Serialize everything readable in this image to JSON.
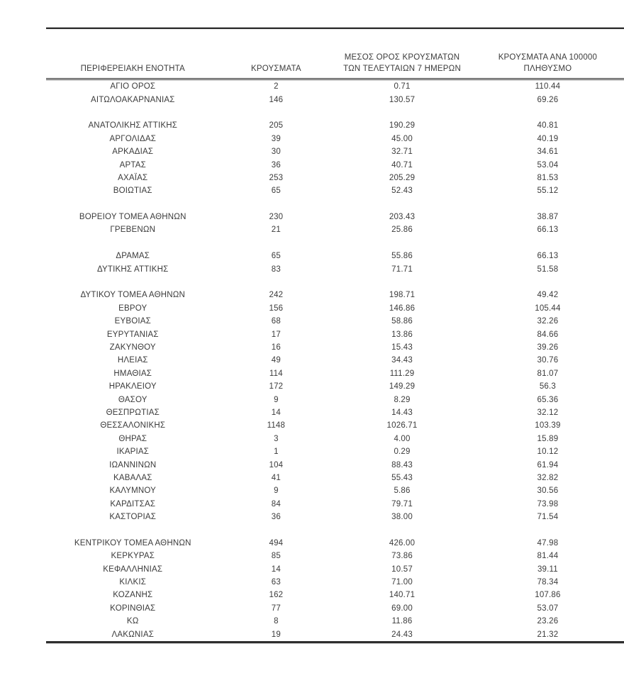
{
  "page": {
    "background": "#ffffff",
    "text_color": "#3b3b3b",
    "rule_color": "#2e2e2e"
  },
  "table": {
    "columns": [
      {
        "id": "region",
        "label_lines": [
          "ΠΕΡΙΦΕΡΕΙΑΚΗ ΕΝΟΤΗΤΑ"
        ]
      },
      {
        "id": "cases",
        "label_lines": [
          "ΚΡΟΥΣΜΑΤΑ"
        ]
      },
      {
        "id": "avg7",
        "label_lines": [
          "ΜΕΣΟΣ ΟΡΟΣ ΚΡΟΥΣΜΑΤΩΝ",
          "ΤΩΝ ΤΕΛΕΥΤΑΙΩΝ 7 ΗΜΕΡΩΝ"
        ]
      },
      {
        "id": "per100k",
        "label_lines": [
          "ΚΡΟΥΣΜΑΤΑ ΑΝΑ 100000",
          "ΠΛΗΘΥΣΜΟ"
        ]
      }
    ],
    "groups": [
      [
        [
          "ΑΓΙΟ ΟΡΟΣ",
          "2",
          "0.71",
          "110.44"
        ],
        [
          "ΑΙΤΩΛΟΑΚΑΡΝΑΝΙΑΣ",
          "146",
          "130.57",
          "69.26"
        ]
      ],
      [
        [
          "ΑΝΑΤΟΛΙΚΗΣ ΑΤΤΙΚΗΣ",
          "205",
          "190.29",
          "40.81"
        ],
        [
          "ΑΡΓΟΛΙΔΑΣ",
          "39",
          "45.00",
          "40.19"
        ],
        [
          "ΑΡΚΑΔΙΑΣ",
          "30",
          "32.71",
          "34.61"
        ],
        [
          "ΑΡΤΑΣ",
          "36",
          "40.71",
          "53.04"
        ],
        [
          "ΑΧΑΪΑΣ",
          "253",
          "205.29",
          "81.53"
        ],
        [
          "ΒΟΙΩΤΙΑΣ",
          "65",
          "52.43",
          "55.12"
        ]
      ],
      [
        [
          "ΒΟΡΕΙΟΥ ΤΟΜΕΑ ΑΘΗΝΩΝ",
          "230",
          "203.43",
          "38.87"
        ],
        [
          "ΓΡΕΒΕΝΩΝ",
          "21",
          "25.86",
          "66.13"
        ]
      ],
      [
        [
          "ΔΡΑΜΑΣ",
          "65",
          "55.86",
          "66.13"
        ],
        [
          "ΔΥΤΙΚΗΣ ΑΤΤΙΚΗΣ",
          "83",
          "71.71",
          "51.58"
        ]
      ],
      [
        [
          "ΔΥΤΙΚΟΥ ΤΟΜΕΑ ΑΘΗΝΩΝ",
          "242",
          "198.71",
          "49.42"
        ],
        [
          "ΕΒΡΟΥ",
          "156",
          "146.86",
          "105.44"
        ],
        [
          "ΕΥΒΟΙΑΣ",
          "68",
          "58.86",
          "32.26"
        ],
        [
          "ΕΥΡΥΤΑΝΙΑΣ",
          "17",
          "13.86",
          "84.66"
        ],
        [
          "ΖΑΚΥΝΘΟΥ",
          "16",
          "15.43",
          "39.26"
        ],
        [
          "ΗΛΕΙΑΣ",
          "49",
          "34.43",
          "30.76"
        ],
        [
          "ΗΜΑΘΙΑΣ",
          "114",
          "111.29",
          "81.07"
        ],
        [
          "ΗΡΑΚΛΕΙΟΥ",
          "172",
          "149.29",
          "56.3"
        ],
        [
          "ΘΑΣΟΥ",
          "9",
          "8.29",
          "65.36"
        ],
        [
          "ΘΕΣΠΡΩΤΙΑΣ",
          "14",
          "14.43",
          "32.12"
        ],
        [
          "ΘΕΣΣΑΛΟΝΙΚΗΣ",
          "1148",
          "1026.71",
          "103.39"
        ],
        [
          "ΘΗΡΑΣ",
          "3",
          "4.00",
          "15.89"
        ],
        [
          "ΙΚΑΡΙΑΣ",
          "1",
          "0.29",
          "10.12"
        ],
        [
          "ΙΩΑΝΝΙΝΩΝ",
          "104",
          "88.43",
          "61.94"
        ],
        [
          "ΚΑΒΑΛΑΣ",
          "41",
          "55.43",
          "32.82"
        ],
        [
          "ΚΑΛΥΜΝΟΥ",
          "9",
          "5.86",
          "30.56"
        ],
        [
          "ΚΑΡΔΙΤΣΑΣ",
          "84",
          "79.71",
          "73.98"
        ],
        [
          "ΚΑΣΤΟΡΙΑΣ",
          "36",
          "38.00",
          "71.54"
        ]
      ],
      [
        [
          "ΚΕΝΤΡΙΚΟΥ ΤΟΜΕΑ ΑΘΗΝΩΝ",
          "494",
          "426.00",
          "47.98"
        ],
        [
          "ΚΕΡΚΥΡΑΣ",
          "85",
          "73.86",
          "81.44"
        ],
        [
          "ΚΕΦΑΛΛΗΝΙΑΣ",
          "14",
          "10.57",
          "39.11"
        ],
        [
          "ΚΙΛΚΙΣ",
          "63",
          "71.00",
          "78.34"
        ],
        [
          "ΚΟΖΑΝΗΣ",
          "162",
          "140.71",
          "107.86"
        ],
        [
          "ΚΟΡΙΝΘΙΑΣ",
          "77",
          "69.00",
          "53.07"
        ],
        [
          "ΚΩ",
          "8",
          "11.86",
          "23.26"
        ],
        [
          "ΛΑΚΩΝΙΑΣ",
          "19",
          "24.43",
          "21.32"
        ]
      ]
    ]
  }
}
